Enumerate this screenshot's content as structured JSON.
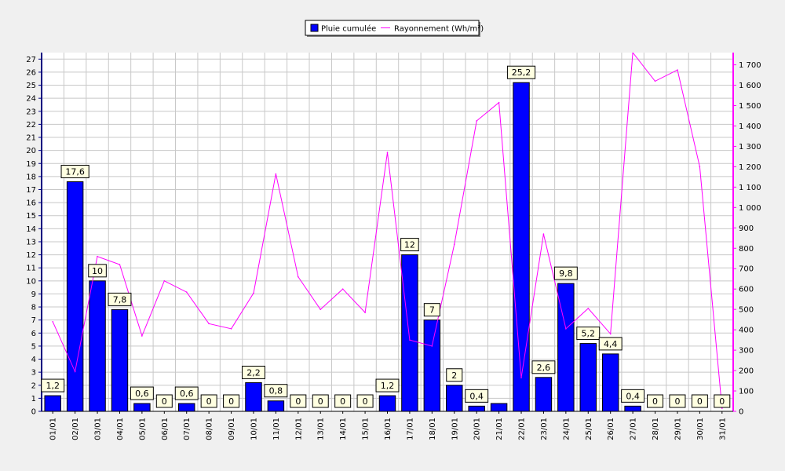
{
  "chart_data": {
    "type": "bar",
    "categories": [
      "01/01",
      "02/01",
      "03/01",
      "04/01",
      "05/01",
      "06/01",
      "07/01",
      "08/01",
      "09/01",
      "10/01",
      "11/01",
      "12/01",
      "13/01",
      "14/01",
      "15/01",
      "16/01",
      "17/01",
      "18/01",
      "19/01",
      "20/01",
      "21/01",
      "22/01",
      "23/01",
      "24/01",
      "25/01",
      "26/01",
      "27/01",
      "28/01",
      "29/01",
      "30/01",
      "31/01"
    ],
    "series": [
      {
        "name": "Pluie cumulée",
        "type": "bar",
        "axis": "left",
        "color": "#0000ff",
        "values": [
          1.2,
          17.6,
          10,
          7.8,
          0.6,
          0,
          0.6,
          0,
          0,
          2.2,
          0.8,
          0,
          0,
          0,
          0,
          1.2,
          12,
          7,
          2,
          0.4,
          0.6,
          25.2,
          2.6,
          9.8,
          5.2,
          4.4,
          0.4,
          0,
          0,
          0,
          0
        ],
        "labels": [
          "1,2",
          "17,6",
          "10",
          "7,8",
          "0,6",
          "0",
          "0,6",
          "0",
          "0",
          "2,2",
          "0,8",
          "0",
          "0",
          "0",
          "0",
          "1,2",
          "12",
          "7",
          "2",
          "0,4",
          "",
          "25,2",
          "2,6",
          "9,8",
          "5,2",
          "4,4",
          "0,4",
          "0",
          "0",
          "0",
          "0"
        ]
      },
      {
        "name": "Rayonnement (Wh/m²)",
        "type": "line",
        "axis": "right",
        "color": "#ff00ff",
        "values": [
          440,
          195,
          760,
          720,
          370,
          640,
          585,
          430,
          405,
          580,
          1165,
          660,
          500,
          600,
          485,
          1270,
          350,
          320,
          820,
          1425,
          1515,
          165,
          870,
          405,
          505,
          380,
          1760,
          1620,
          1675,
          1200,
          15
        ]
      }
    ],
    "y_left": {
      "range": [
        0,
        27.5
      ],
      "ticks": [
        0,
        1,
        2,
        3,
        4,
        5,
        6,
        7,
        8,
        9,
        10,
        11,
        12,
        13,
        14,
        15,
        16,
        17,
        18,
        19,
        20,
        21,
        22,
        23,
        24,
        25,
        26,
        27
      ],
      "tick_labels": [
        "0",
        "1",
        "2",
        "3",
        "4",
        "5",
        "6",
        "7",
        "8",
        "9",
        "10",
        "11",
        "12",
        "13",
        "14",
        "15",
        "16",
        "17",
        "18",
        "19",
        "20",
        "21",
        "22",
        "23",
        "24",
        "25",
        "26",
        "27"
      ]
    },
    "y_right": {
      "range": [
        0,
        1760
      ],
      "ticks": [
        0,
        100,
        200,
        300,
        400,
        500,
        600,
        700,
        800,
        900,
        1000,
        1100,
        1200,
        1300,
        1400,
        1500,
        1600,
        1700
      ],
      "tick_labels": [
        "0",
        "100",
        "200",
        "300",
        "400",
        "500",
        "600",
        "700",
        "800",
        "900",
        "1 000",
        "1 100",
        "1 200",
        "1 300",
        "1 400",
        "1 500",
        "1 600",
        "1 700"
      ]
    },
    "grid": true,
    "legend_position": "top-center"
  }
}
